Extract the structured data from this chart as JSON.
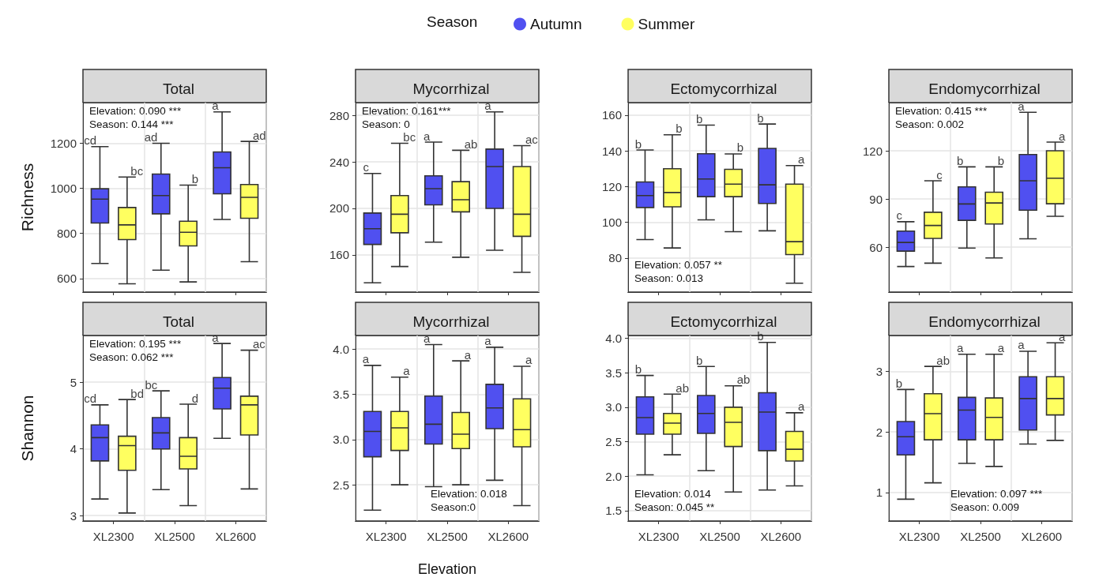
{
  "chart_data": [
    {
      "type": "box",
      "title": "Total",
      "ylabel": "Richness",
      "legend": "top",
      "legend_title": "Season",
      "categories": [
        null,
        null,
        null
      ],
      "ylim": [
        540,
        1380
      ],
      "yticks": [
        600,
        800,
        1000,
        1200
      ],
      "grid": true,
      "tick_labels": "y",
      "annotations": [
        "Elevation: 0.090 ***",
        "Season: 0.144 ***"
      ],
      "series": [
        {
          "name": "Autumn",
          "color": "#5050f0",
          "value_labels": [
            "cd",
            "ad",
            "a"
          ],
          "boxes": [
            {
              "low": 667,
              "q1": 846,
              "median": 952,
              "q3": 998,
              "high": 1185
            },
            {
              "low": 637,
              "q1": 887,
              "median": 968,
              "q3": 1063,
              "high": 1200
            },
            {
              "low": 862,
              "q1": 976,
              "median": 1091,
              "q3": 1161,
              "high": 1339
            }
          ]
        },
        {
          "name": "Summer",
          "color": "#ffff60",
          "value_labels": [
            "bc",
            "b",
            "ad"
          ],
          "boxes": [
            {
              "low": 577,
              "q1": 773,
              "median": 838,
              "q3": 915,
              "high": 1050
            },
            {
              "low": 585,
              "q1": 745,
              "median": 805,
              "q3": 854,
              "high": 1014
            },
            {
              "low": 675,
              "q1": 867,
              "median": 960,
              "q3": 1017,
              "high": 1208
            }
          ]
        }
      ]
    },
    {
      "type": "box",
      "title": "Mycorrhizal",
      "categories": [
        null,
        null,
        null
      ],
      "ylim": [
        128,
        291
      ],
      "yticks": [
        160,
        200,
        240,
        280
      ],
      "grid": true,
      "tick_labels": "y",
      "annotations": [
        "Elevation: 0.161***",
        "Season: 0"
      ],
      "series": [
        {
          "color": "#5050f0",
          "value_labels": [
            "c",
            "a",
            "a"
          ],
          "boxes": [
            {
              "low": 136,
              "q1": 169,
              "median": 182.5,
              "q3": 196,
              "high": 230
            },
            {
              "low": 171,
              "q1": 203,
              "median": 217,
              "q3": 228,
              "high": 257
            },
            {
              "low": 164,
              "q1": 200,
              "median": 236,
              "q3": 251,
              "high": 283
            }
          ]
        },
        {
          "color": "#ffff60",
          "value_labels": [
            "bc",
            "ab",
            "ac"
          ],
          "boxes": [
            {
              "low": 150,
              "q1": 179,
              "median": 195,
              "q3": 211,
              "high": 256
            },
            {
              "low": 158,
              "q1": 197,
              "median": 207.5,
              "q3": 223,
              "high": 250
            },
            {
              "low": 145,
              "q1": 176,
              "median": 195,
              "q3": 236,
              "high": 254
            }
          ]
        }
      ]
    },
    {
      "type": "box",
      "title": "Ectomycorrhizal",
      "categories": [
        null,
        null,
        null
      ],
      "ylim": [
        61,
        167
      ],
      "yticks": [
        80,
        100,
        120,
        140,
        160
      ],
      "grid": true,
      "tick_labels": "y",
      "annotations": [
        "Elevation: 0.057 **",
        "Season: 0.013"
      ],
      "series": [
        {
          "color": "#5050f0",
          "value_labels": [
            "b",
            "b",
            "b"
          ],
          "boxes": [
            {
              "low": 90.4,
              "q1": 108.3,
              "median": 115,
              "q3": 122.6,
              "high": 140.5
            },
            {
              "low": 101.4,
              "q1": 114.4,
              "median": 124.3,
              "q3": 138.4,
              "high": 154.4
            },
            {
              "low": 95.3,
              "q1": 110.6,
              "median": 121,
              "q3": 141.4,
              "high": 155
            }
          ]
        },
        {
          "color": "#ffff60",
          "value_labels": [
            "b",
            "b",
            "a"
          ],
          "boxes": [
            {
              "low": 85.7,
              "q1": 108.7,
              "median": 116.7,
              "q3": 130,
              "high": 149
            },
            {
              "low": 94.8,
              "q1": 114.4,
              "median": 121.4,
              "q3": 129.7,
              "high": 138.3
            },
            {
              "low": 66,
              "q1": 82,
              "median": 89.2,
              "q3": 121.4,
              "high": 131.8
            }
          ]
        }
      ]
    },
    {
      "type": "box",
      "title": "Endomycorrhizal",
      "categories": [
        null,
        null,
        null
      ],
      "ylim": [
        32,
        150
      ],
      "yticks": [
        60,
        90,
        120
      ],
      "grid": true,
      "tick_labels": "y",
      "annotations": [
        "Elevation: 0.415 ***",
        "Season: 0.002"
      ],
      "series": [
        {
          "color": "#5050f0",
          "value_labels": [
            "c",
            "b",
            "a"
          ],
          "boxes": [
            {
              "low": 47.9,
              "q1": 57.5,
              "median": 62.9,
              "q3": 70,
              "high": 75.8
            },
            {
              "low": 59.4,
              "q1": 76.7,
              "median": 86.9,
              "q3": 97.5,
              "high": 110
            },
            {
              "low": 65.2,
              "q1": 83,
              "median": 101.3,
              "q3": 117.7,
              "high": 144
            }
          ]
        },
        {
          "color": "#ffff60",
          "value_labels": [
            "c",
            "b",
            "a"
          ],
          "boxes": [
            {
              "low": 50,
              "q1": 65.4,
              "median": 73.5,
              "q3": 81.7,
              "high": 101.3
            },
            {
              "low": 53.3,
              "q1": 74.4,
              "median": 87.5,
              "q3": 94.2,
              "high": 110
            },
            {
              "low": 79.2,
              "q1": 87,
              "median": 102.9,
              "q3": 120,
              "high": 125.4
            }
          ]
        }
      ]
    },
    {
      "type": "box",
      "title": "Total",
      "ylabel": "Shannon",
      "categories": [
        "XL2300",
        "XL2500",
        "XL2600"
      ],
      "ylim": [
        2.92,
        5.7
      ],
      "yticks": [
        3,
        4,
        5
      ],
      "grid": true,
      "annotations": [
        "Elevation: 0.195 ***",
        "Season: 0.062 ***"
      ],
      "series": [
        {
          "color": "#5050f0",
          "value_labels": [
            "cd",
            "bc",
            "a"
          ],
          "boxes": [
            {
              "low": 3.25,
              "q1": 3.82,
              "median": 4.17,
              "q3": 4.36,
              "high": 4.66
            },
            {
              "low": 3.39,
              "q1": 4.0,
              "median": 4.24,
              "q3": 4.47,
              "high": 4.87
            },
            {
              "low": 4.16,
              "q1": 4.6,
              "median": 4.91,
              "q3": 5.07,
              "high": 5.58
            }
          ]
        },
        {
          "color": "#ffff60",
          "value_labels": [
            "bd",
            "d",
            "ac"
          ],
          "boxes": [
            {
              "low": 3.04,
              "q1": 3.68,
              "median": 4.05,
              "q3": 4.19,
              "high": 4.74
            },
            {
              "low": 3.15,
              "q1": 3.7,
              "median": 3.89,
              "q3": 4.17,
              "high": 4.67
            },
            {
              "low": 3.4,
              "q1": 4.21,
              "median": 4.66,
              "q3": 4.79,
              "high": 5.48
            }
          ]
        }
      ]
    },
    {
      "type": "box",
      "title": "Mycorrhizal",
      "xlabel": "Elevation",
      "categories": [
        "XL2300",
        "XL2500",
        "XL2600"
      ],
      "ylim": [
        2.1,
        4.15
      ],
      "yticks": [
        {
          "value": 2.5,
          "label": "2.5"
        },
        {
          "value": 3,
          "label": "3.0"
        },
        {
          "value": 3.5,
          "label": "3.5"
        },
        {
          "value": 4,
          "label": "4.0"
        }
      ],
      "grid": true,
      "annotations": [
        "Elevation: 0.018",
        "Season:0"
      ],
      "series": [
        {
          "color": "#5050f0",
          "value_labels": [
            "a",
            "a",
            "a"
          ],
          "boxes": [
            {
              "low": 2.22,
              "q1": 2.81,
              "median": 3.09,
              "q3": 3.31,
              "high": 3.82
            },
            {
              "low": 2.48,
              "q1": 2.95,
              "median": 3.17,
              "q3": 3.48,
              "high": 4.05
            },
            {
              "low": 2.55,
              "q1": 3.12,
              "median": 3.35,
              "q3": 3.61,
              "high": 4.02
            }
          ]
        },
        {
          "color": "#ffff60",
          "value_labels": [
            "a",
            "a",
            "a"
          ],
          "boxes": [
            {
              "low": 2.5,
              "q1": 2.88,
              "median": 3.13,
              "q3": 3.31,
              "high": 3.69
            },
            {
              "low": 2.5,
              "q1": 2.9,
              "median": 3.06,
              "q3": 3.3,
              "high": 3.87
            },
            {
              "low": 2.27,
              "q1": 2.92,
              "median": 3.11,
              "q3": 3.45,
              "high": 3.81
            }
          ]
        }
      ]
    },
    {
      "type": "box",
      "title": "Ectomycorrhizal",
      "categories": [
        "XL2300",
        "XL2500",
        "XL2600"
      ],
      "ylim": [
        1.35,
        4.04
      ],
      "yticks": [
        {
          "value": 1.5,
          "label": "1.5"
        },
        {
          "value": 2,
          "label": "2.0"
        },
        {
          "value": 2.5,
          "label": "2.5"
        },
        {
          "value": 3,
          "label": "3.0"
        },
        {
          "value": 3.5,
          "label": "3.5"
        },
        {
          "value": 4,
          "label": "4.0"
        }
      ],
      "grid": true,
      "annotations": [
        "Elevation: 0.014",
        "Season: 0.045 **"
      ],
      "series": [
        {
          "color": "#5050f0",
          "value_labels": [
            "b",
            "b",
            "b"
          ],
          "boxes": [
            {
              "low": 2.02,
              "q1": 2.61,
              "median": 2.85,
              "q3": 3.15,
              "high": 3.46
            },
            {
              "low": 2.08,
              "q1": 2.62,
              "median": 2.91,
              "q3": 3.17,
              "high": 3.59
            },
            {
              "low": 1.8,
              "q1": 2.37,
              "median": 2.93,
              "q3": 3.21,
              "high": 3.94
            }
          ]
        },
        {
          "color": "#ffff60",
          "value_labels": [
            "ab",
            "ab",
            "a"
          ],
          "boxes": [
            {
              "low": 2.31,
              "q1": 2.61,
              "median": 2.77,
              "q3": 2.91,
              "high": 3.19
            },
            {
              "low": 1.77,
              "q1": 2.43,
              "median": 2.78,
              "q3": 3.0,
              "high": 3.31
            },
            {
              "low": 1.86,
              "q1": 2.22,
              "median": 2.39,
              "q3": 2.65,
              "high": 2.92
            }
          ]
        }
      ]
    },
    {
      "type": "box",
      "title": "Endomycorrhizal",
      "categories": [
        "XL2300",
        "XL2500",
        "XL2600"
      ],
      "ylim": [
        0.53,
        3.59
      ],
      "yticks": [
        1,
        2,
        3
      ],
      "grid": true,
      "annotations": [
        "Elevation: 0.097 ***",
        "Season: 0.009"
      ],
      "series": [
        {
          "color": "#5050f0",
          "value_labels": [
            "b",
            "a",
            "a"
          ],
          "boxes": [
            {
              "low": 0.89,
              "q1": 1.62,
              "median": 1.92,
              "q3": 2.17,
              "high": 2.7
            },
            {
              "low": 1.48,
              "q1": 1.87,
              "median": 2.36,
              "q3": 2.57,
              "high": 3.28
            },
            {
              "low": 1.8,
              "q1": 2.03,
              "median": 2.55,
              "q3": 2.91,
              "high": 3.33
            }
          ]
        },
        {
          "color": "#ffff60",
          "value_labels": [
            "ab",
            "a",
            "a"
          ],
          "boxes": [
            {
              "low": 1.16,
              "q1": 1.87,
              "median": 2.3,
              "q3": 2.63,
              "high": 3.08
            },
            {
              "low": 1.43,
              "q1": 1.87,
              "median": 2.24,
              "q3": 2.56,
              "high": 3.28
            },
            {
              "low": 1.86,
              "q1": 2.28,
              "median": 2.55,
              "q3": 2.91,
              "high": 3.47
            }
          ]
        }
      ]
    }
  ]
}
